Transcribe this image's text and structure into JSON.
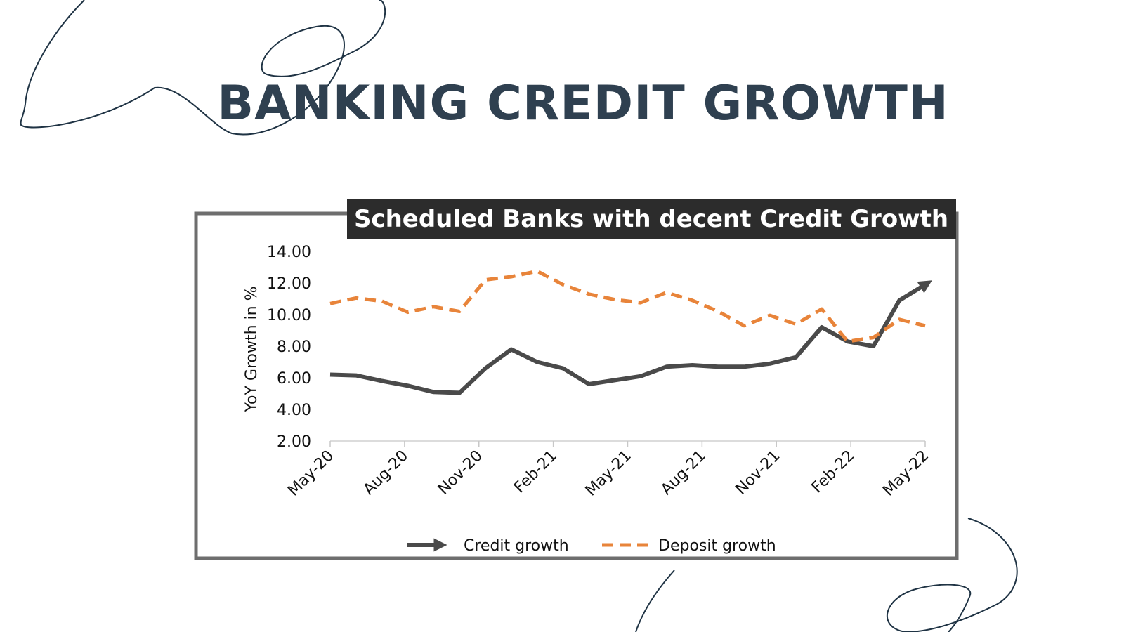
{
  "slide": {
    "title": "BANKING CREDIT GROWTH"
  },
  "colors": {
    "title": "#2f4050",
    "credit": "#4a4a4a",
    "deposit": "#e8843a",
    "banner_bg": "#2c2c2c",
    "frame": "#6e6e6e"
  },
  "chart_data": {
    "type": "line",
    "title": "Scheduled Banks with decent Credit Growth",
    "ylabel": "YoY Growth in %",
    "xlabel": "",
    "ylim": [
      2,
      14
    ],
    "y_ticks": [
      "14.00",
      "12.00",
      "10.00",
      "8.00",
      "6.00",
      "4.00",
      "2.00"
    ],
    "x_tick_labels": [
      "May-20",
      "Aug-20",
      "Nov-20",
      "Feb-21",
      "May-21",
      "Aug-21",
      "Nov-21",
      "Feb-22",
      "May-22"
    ],
    "grid": false,
    "legend_position": "bottom",
    "series": [
      {
        "name": "Credit growth",
        "style": "solid-arrow",
        "values": [
          6.2,
          6.15,
          5.8,
          5.5,
          5.1,
          5.05,
          6.6,
          7.8,
          7.0,
          6.6,
          5.6,
          5.85,
          6.1,
          6.7,
          6.8,
          6.7,
          6.7,
          6.9,
          7.3,
          9.2,
          8.3,
          8.0,
          10.9,
          11.9
        ]
      },
      {
        "name": "Deposit growth",
        "style": "dashed",
        "values": [
          10.7,
          11.05,
          10.85,
          10.15,
          10.5,
          10.2,
          12.2,
          12.4,
          12.75,
          11.9,
          11.3,
          10.95,
          10.75,
          11.4,
          10.9,
          10.2,
          9.3,
          9.95,
          9.4,
          10.35,
          8.3,
          8.55,
          9.7,
          9.3
        ]
      }
    ]
  }
}
